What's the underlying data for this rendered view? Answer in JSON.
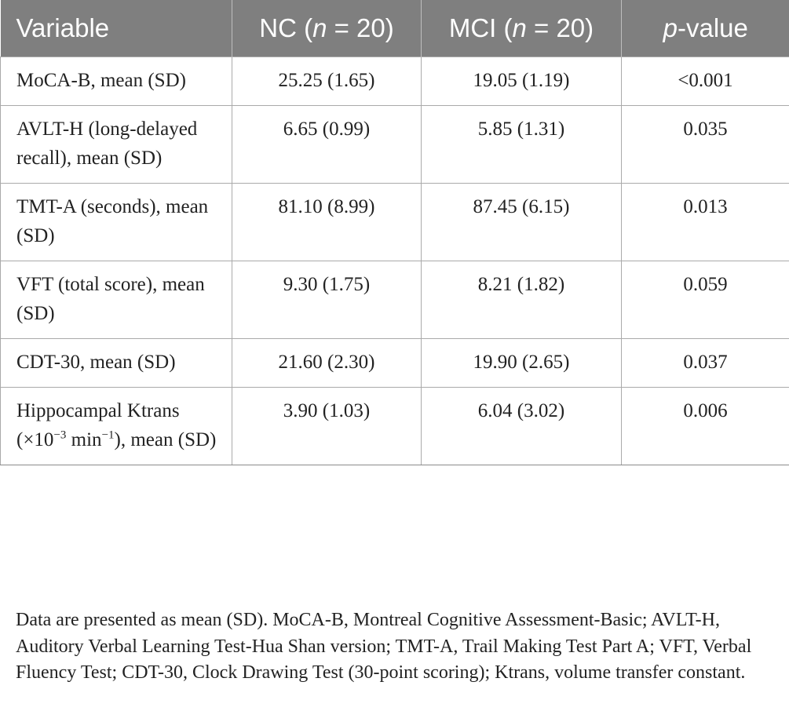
{
  "table": {
    "headers": {
      "variable": "Variable",
      "nc_prefix": "NC (",
      "nc_n": "n",
      "nc_suffix": " = 20)",
      "mci_prefix": "MCI (",
      "mci_n": "n",
      "mci_suffix": " = 20)",
      "p_italic": "p",
      "p_suffix": "-value"
    },
    "rows": [
      {
        "variable": "MoCA-B, mean (SD)",
        "nc": "25.25 (1.65)",
        "mci": "19.05 (1.19)",
        "p": "<0.001"
      },
      {
        "variable": "AVLT-H (long-delayed recall), mean (SD)",
        "nc": "6.65 (0.99)",
        "mci": "5.85 (1.31)",
        "p": "0.035"
      },
      {
        "variable": "TMT-A (seconds), mean (SD)",
        "nc": "81.10 (8.99)",
        "mci": "87.45 (6.15)",
        "p": "0.013"
      },
      {
        "variable": "VFT (total score), mean (SD)",
        "nc": "9.30 (1.75)",
        "mci": "8.21 (1.82)",
        "p": "0.059"
      },
      {
        "variable": "CDT-30, mean (SD)",
        "nc": "21.60 (2.30)",
        "mci": "19.90 (2.65)",
        "p": "0.037"
      },
      {
        "variable_main": "Hippocampal Ktrans (×10",
        "variable_exp1": "−3",
        "variable_mid": " min",
        "variable_exp2": "−1",
        "variable_end": "), mean (SD)",
        "nc": "3.90 (1.03)",
        "mci": "6.04 (3.02)",
        "p": "0.006"
      }
    ]
  },
  "footnote": "Data are presented as mean (SD). MoCA-B, Montreal Cognitive Assessment-Basic; AVLT-H, Auditory Verbal Learning Test-Hua Shan version; TMT-A, Trail Making Test Part A; VFT, Verbal Fluency Test; CDT-30, Clock Drawing Test (30-point scoring); Ktrans, volume transfer constant."
}
